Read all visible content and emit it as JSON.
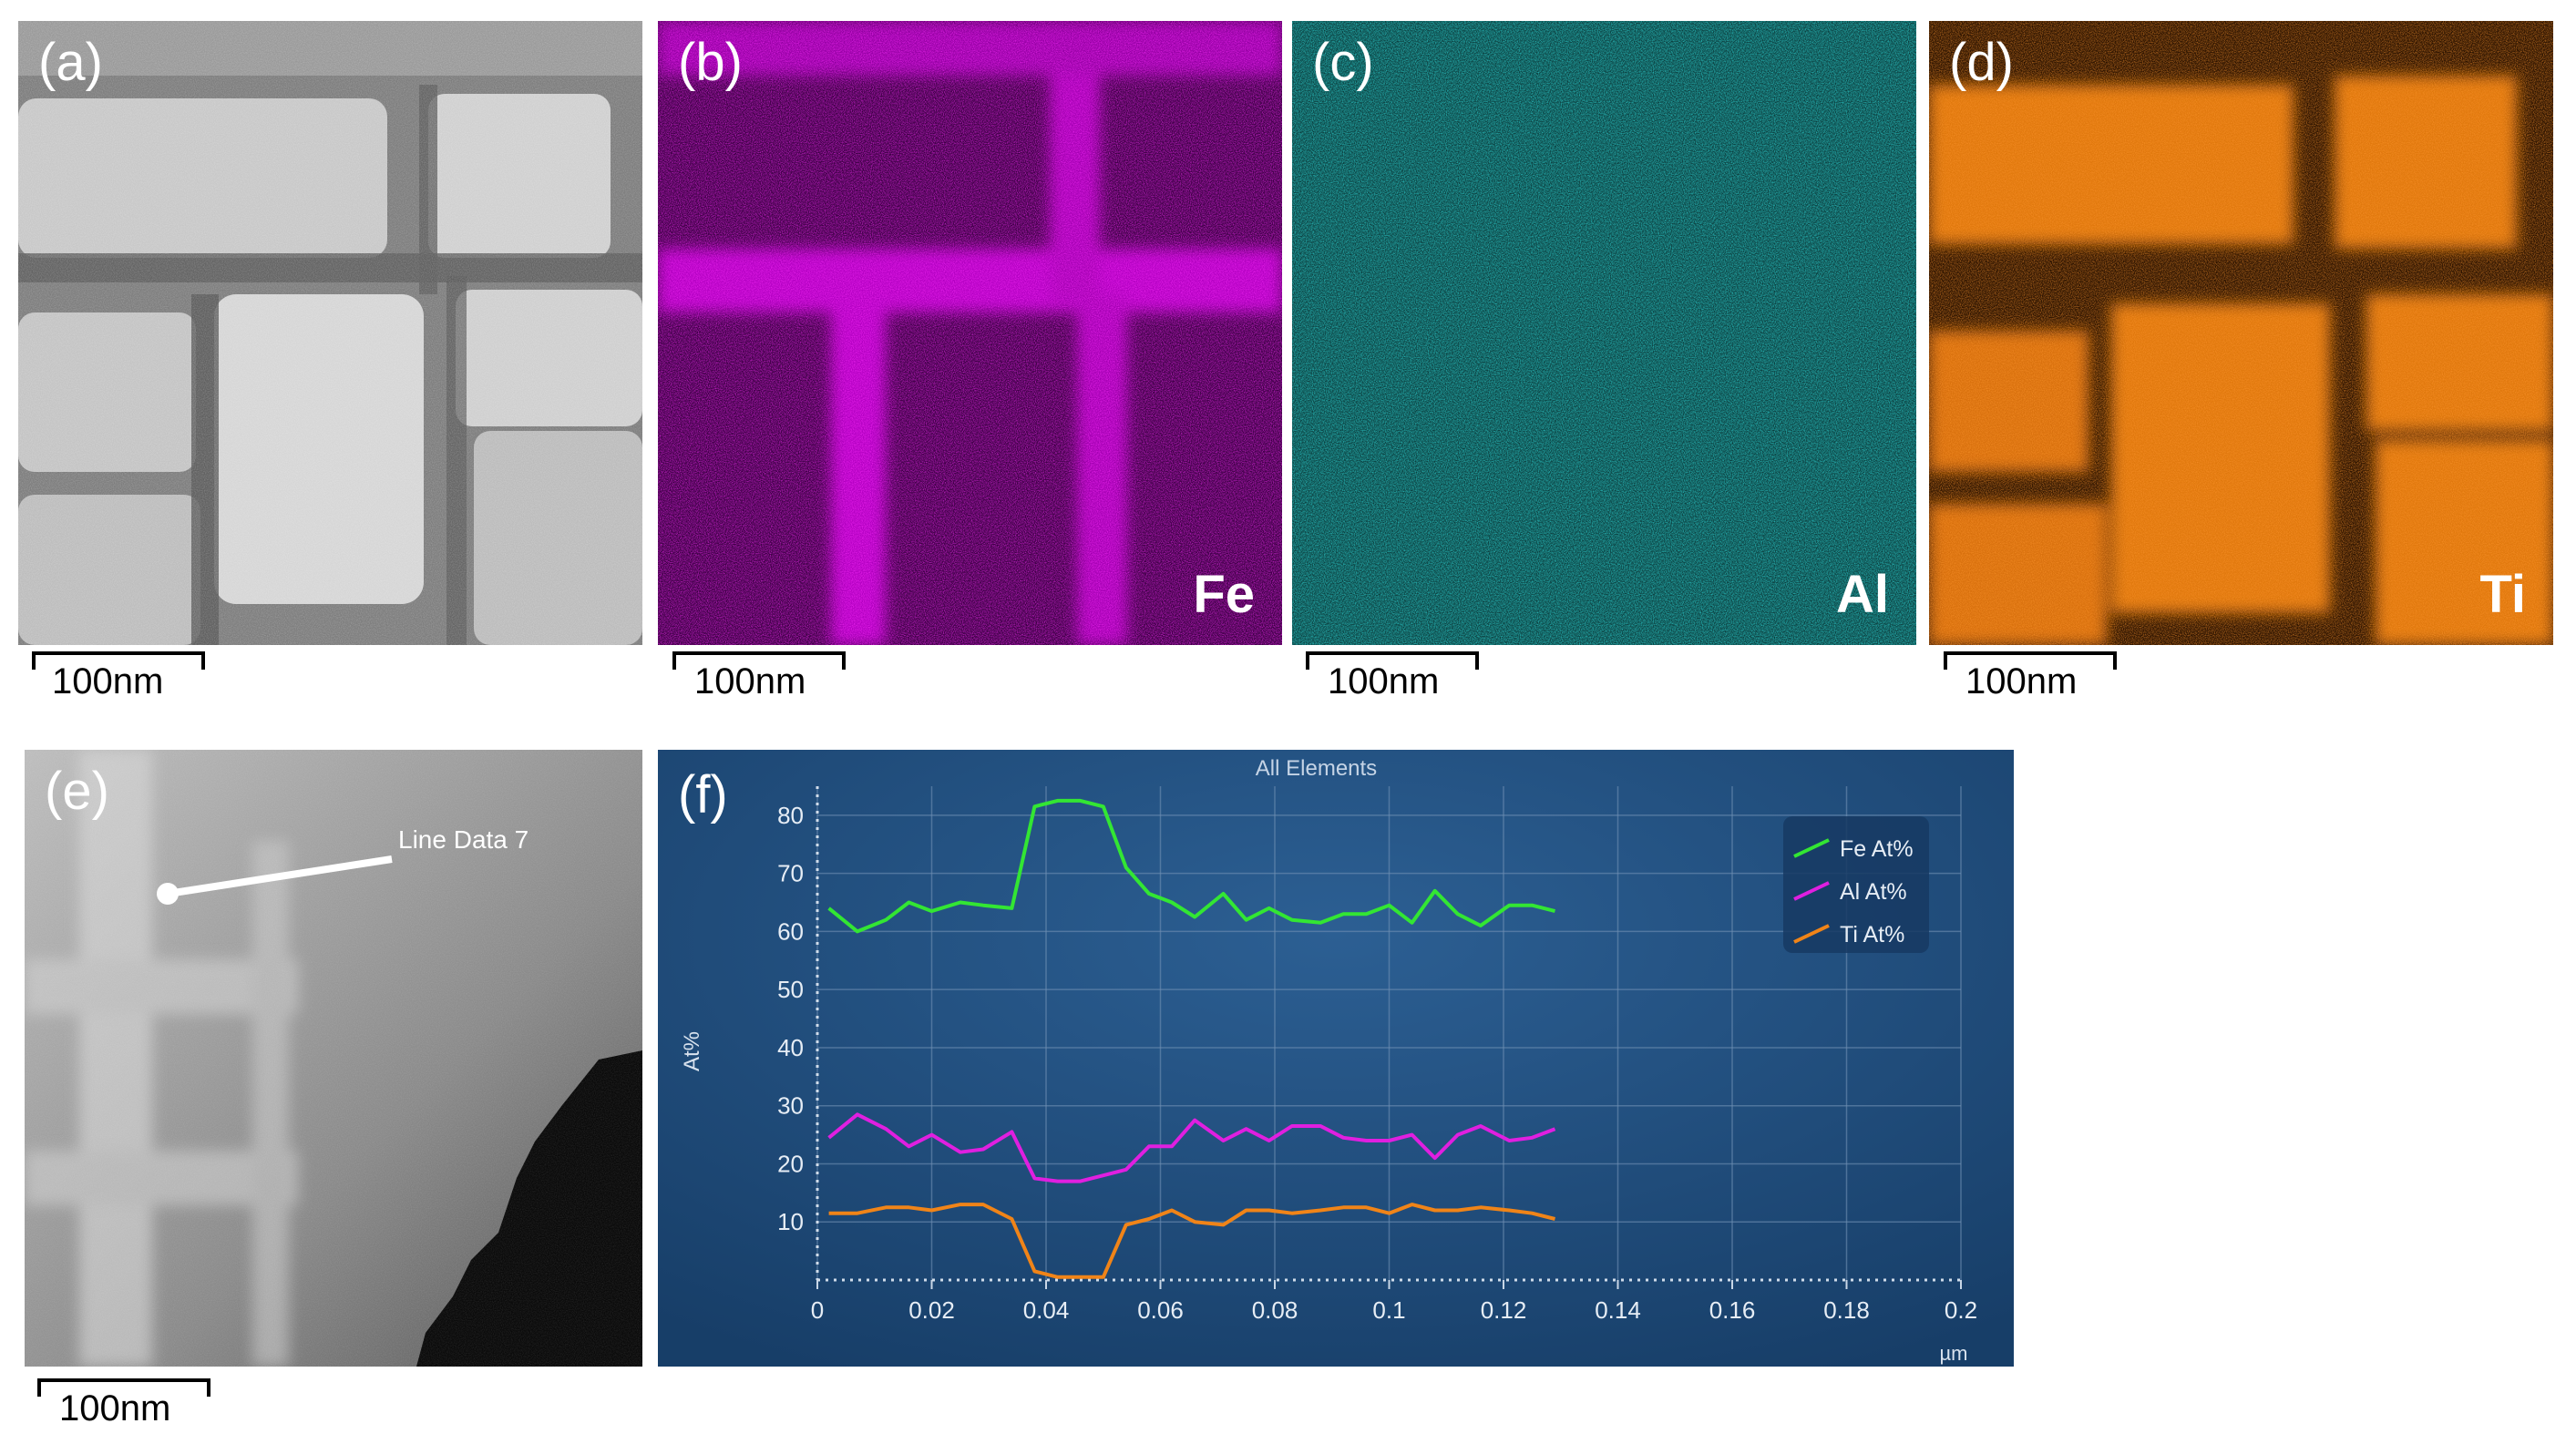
{
  "panels": {
    "a": {
      "label": "(a)",
      "scale": "100nm"
    },
    "b": {
      "label": "(b)",
      "element": "Fe",
      "scale": "100nm"
    },
    "c": {
      "label": "(c)",
      "element": "Al",
      "scale": "100nm"
    },
    "d": {
      "label": "(d)",
      "element": "Ti",
      "scale": "100nm"
    },
    "e": {
      "label": "(e)",
      "line_label": "Line Data 7",
      "scale": "100nm"
    },
    "f": {
      "label": "(f)"
    }
  },
  "colors": {
    "fe_map": "#b000c0",
    "al_map": "#18b4b4",
    "ti_map": "#d06a10",
    "chart_bg": "#1d4a78",
    "fe_line": "#33e633",
    "al_line": "#e01fe0",
    "ti_line": "#f08418"
  },
  "chart_data": {
    "type": "line",
    "title": "All Elements",
    "xlabel": "µm",
    "ylabel": "At%",
    "xlim": [
      0,
      0.2
    ],
    "ylim": [
      0,
      85
    ],
    "xticks": [
      "0",
      "0.02",
      "0.04",
      "0.06",
      "0.08",
      "0.1",
      "0.12",
      "0.14",
      "0.16",
      "0.18",
      "0.2"
    ],
    "yticks": [
      "10",
      "20",
      "30",
      "40",
      "50",
      "60",
      "70",
      "80"
    ],
    "legend_position": "top-right",
    "x": [
      0.002,
      0.007,
      0.012,
      0.016,
      0.02,
      0.025,
      0.029,
      0.034,
      0.038,
      0.042,
      0.046,
      0.05,
      0.054,
      0.058,
      0.062,
      0.066,
      0.071,
      0.075,
      0.079,
      0.083,
      0.088,
      0.092,
      0.096,
      0.1,
      0.104,
      0.108,
      0.112,
      0.116,
      0.121,
      0.125,
      0.129,
      0.133,
      0.138
    ],
    "series": [
      {
        "name": "Fe At%",
        "values": [
          64,
          60,
          62,
          65,
          63.5,
          65,
          64.5,
          64,
          81.5,
          82.5,
          82.5,
          81.5,
          71,
          66.5,
          65,
          62.5,
          66.5,
          62,
          64,
          62,
          61.5,
          63,
          63,
          64.5,
          61.5,
          67,
          63,
          61,
          64.5,
          64.5,
          63.5,
          null,
          null
        ]
      },
      {
        "name": "Al At%",
        "values": [
          24.5,
          28.5,
          26,
          23,
          25,
          22,
          22.5,
          25.5,
          17.5,
          17,
          17,
          18,
          19,
          23,
          23,
          27.5,
          24,
          26,
          24,
          26.5,
          26.5,
          24.5,
          24,
          24,
          25,
          21,
          25,
          26.5,
          24,
          24.5,
          26,
          null,
          null
        ]
      },
      {
        "name": "Ti At%",
        "values": [
          11.5,
          11.5,
          12.5,
          12.5,
          12,
          13,
          13,
          10.5,
          1.5,
          0.5,
          0.5,
          0.5,
          9.5,
          10.5,
          12,
          10,
          9.5,
          12,
          12,
          11.5,
          12,
          12.5,
          12.5,
          11.5,
          13,
          12,
          12,
          12.5,
          12,
          11.5,
          10.5,
          null,
          null
        ]
      }
    ]
  }
}
